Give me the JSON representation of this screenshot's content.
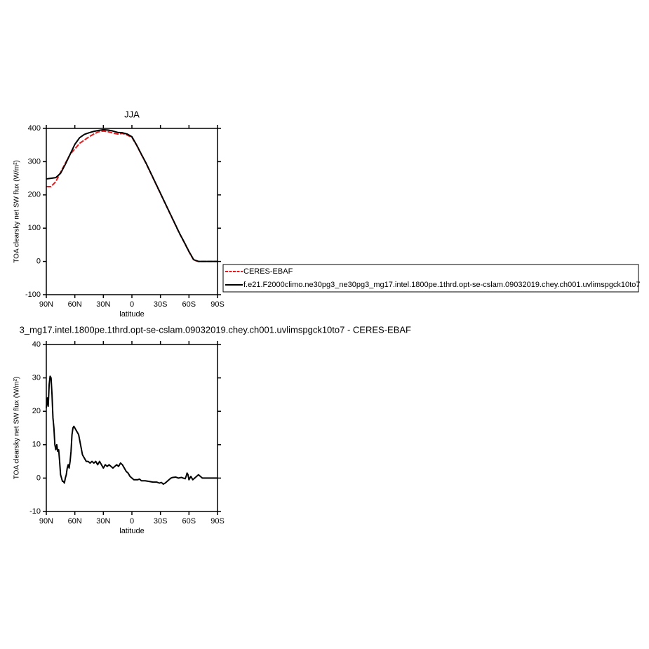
{
  "chart_data": [
    {
      "type": "line",
      "title": "JJA",
      "xlabel": "latitude",
      "ylabel": "TOA clearsky net SW flux (W/m²)",
      "x": [
        90,
        85,
        80,
        75,
        70,
        65,
        60,
        55,
        50,
        45,
        40,
        35,
        30,
        25,
        20,
        15,
        10,
        5,
        0,
        -5,
        -10,
        -15,
        -20,
        -25,
        -30,
        -35,
        -40,
        -45,
        -50,
        -55,
        -60,
        -65,
        -70,
        -75,
        -80,
        -85,
        -90
      ],
      "series": [
        {
          "name": "CERES-EBAF",
          "color": "#e41a1c",
          "values": [
            225,
            225,
            240,
            268,
            295,
            322,
            338,
            355,
            365,
            375,
            383,
            390,
            392,
            390,
            386,
            383,
            385,
            380,
            373,
            349,
            321,
            294,
            264,
            234,
            204,
            174,
            144,
            114,
            84,
            57,
            29,
            4,
            0,
            0,
            0,
            0,
            0
          ]
        },
        {
          "name": "f.e21.F2000climo.ne30pg3_ne30pg3_mg17.intel.1800pe.1thrd.opt-se-cslam.09032019.chey.ch001.uvlimspgck10to7",
          "color": "#000000",
          "values": [
            248,
            250,
            252,
            265,
            292,
            322,
            352,
            372,
            382,
            387,
            391,
            394,
            396,
            395,
            392,
            388,
            387,
            383,
            375,
            350,
            322,
            295,
            265,
            235,
            205,
            175,
            145,
            115,
            85,
            58,
            30,
            5,
            0,
            0,
            0,
            0,
            0
          ]
        }
      ],
      "xlim": [
        90,
        -90
      ],
      "xticks": [
        {
          "value": 90,
          "label": "90N"
        },
        {
          "value": 60,
          "label": "60N"
        },
        {
          "value": 30,
          "label": "30N"
        },
        0,
        {
          "value": -30,
          "label": "30S"
        },
        {
          "value": -60,
          "label": "60S"
        },
        {
          "value": -90,
          "label": "90S"
        }
      ],
      "ylim": [
        -100,
        400
      ],
      "yticks": [
        -100,
        0,
        100,
        200,
        300,
        400
      ]
    },
    {
      "type": "line",
      "title": "3_mg17.intel.1800pe.1thrd.opt-se-cslam.09032019.chey.ch001.uvlimspgck10to7 - CERES-EBAF",
      "xlabel": "latitude",
      "ylabel": "TOA clearsky net SW flux (W/m²)",
      "x": [
        90,
        89,
        88,
        87,
        86,
        85,
        84,
        83,
        82,
        81,
        80,
        79,
        78,
        77,
        76,
        75,
        74,
        73,
        72,
        71,
        70,
        69,
        68,
        67,
        66,
        65,
        64,
        63,
        62,
        61,
        60,
        58,
        56,
        54,
        52,
        50,
        48,
        46,
        44,
        42,
        40,
        38,
        36,
        34,
        32,
        30,
        28,
        26,
        24,
        22,
        20,
        18,
        16,
        14,
        12,
        10,
        8,
        6,
        4,
        2,
        0,
        -2,
        -6,
        -8,
        -10,
        -14,
        -18,
        -22,
        -26,
        -29,
        -31,
        -33,
        -35,
        -37,
        -39,
        -41,
        -43,
        -46,
        -49,
        -52,
        -54,
        -56,
        -57,
        -58,
        -59,
        -60,
        -62,
        -64,
        -66,
        -68,
        -70,
        -72,
        -74,
        -78,
        -84,
        -90
      ],
      "values": [
        21,
        24,
        21.5,
        28,
        30.5,
        30,
        25,
        18,
        15,
        10,
        8.5,
        10,
        8,
        8.5,
        5,
        1,
        0,
        -1,
        -1,
        -1.5,
        0,
        1,
        3,
        4,
        3,
        5,
        8,
        13,
        15,
        15.5,
        15,
        14,
        13,
        10,
        7,
        6,
        5,
        5,
        4.5,
        5,
        4.5,
        5,
        4,
        5,
        4,
        3,
        4,
        3.5,
        4,
        3.5,
        3,
        3.5,
        4,
        3.5,
        4.5,
        4,
        3,
        2,
        1.5,
        0.5,
        0,
        -0.5,
        -0.5,
        -0.3,
        -0.8,
        -0.8,
        -1,
        -1.2,
        -1.2,
        -1.5,
        -1.3,
        -1.8,
        -1.5,
        -1,
        -0.5,
        0,
        0.2,
        0.3,
        0,
        0.2,
        0,
        -0.2,
        0.5,
        1.5,
        1,
        -0.5,
        0.5,
        -0.5,
        0,
        0.5,
        1,
        0.5,
        0,
        0,
        0,
        0
      ],
      "color": "#000000",
      "xlim": [
        90,
        -90
      ],
      "xticks": [
        {
          "value": 90,
          "label": "90N"
        },
        {
          "value": 60,
          "label": "60N"
        },
        {
          "value": 30,
          "label": "30N"
        },
        0,
        {
          "value": -30,
          "label": "30S"
        },
        {
          "value": -60,
          "label": "60S"
        },
        {
          "value": -90,
          "label": "90S"
        }
      ],
      "ylim": [
        -10,
        40
      ],
      "yticks": [
        -10,
        0,
        10,
        20,
        30,
        40
      ]
    }
  ]
}
